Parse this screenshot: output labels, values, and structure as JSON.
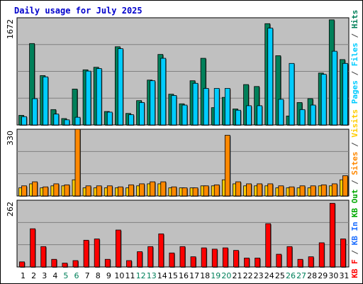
{
  "title": "Daily usage for July 2025",
  "colors": {
    "hits": "#00805a",
    "files": "#00ccff",
    "pages": "#00ccff",
    "sites": "#ff8800",
    "visits": "#ffcc00",
    "kbf": "#ff0000",
    "kbin": "#2070ff",
    "kbout": "#00aa00",
    "plot_bg": "#c0c0c0",
    "weekend": "#00805a",
    "sep": "#444444"
  },
  "chart_data": [
    {
      "type": "bar",
      "panel": "hits-files-pages",
      "categories": [
        "1",
        "2",
        "3",
        "4",
        "5",
        "6",
        "7",
        "8",
        "9",
        "10",
        "11",
        "12",
        "13",
        "14",
        "15",
        "16",
        "17",
        "18",
        "19",
        "20",
        "21",
        "22",
        "23",
        "24",
        "25",
        "26",
        "27",
        "28",
        "29",
        "30",
        "31"
      ],
      "weekend_days": [
        "5",
        "6",
        "12",
        "13",
        "19",
        "20",
        "26",
        "27"
      ],
      "ymax": 1672,
      "ytick_label": "1672",
      "series": [
        {
          "name": "Hits",
          "values": [
            150,
            1270,
            770,
            240,
            100,
            560,
            860,
            900,
            210,
            1220,
            180,
            380,
            700,
            1100,
            480,
            330,
            690,
            1040,
            270,
            430,
            250,
            630,
            600,
            1580,
            1080,
            140,
            350,
            410,
            810,
            1640,
            1020
          ]
        },
        {
          "name": "Files",
          "values": [
            130,
            410,
            750,
            170,
            80,
            120,
            840,
            880,
            200,
            1190,
            160,
            350,
            690,
            1040,
            460,
            310,
            650,
            570,
            570,
            570,
            230,
            300,
            300,
            1510,
            400,
            960,
            240,
            310,
            790,
            1150,
            960
          ]
        }
      ],
      "legend": [
        "Pages",
        "Files",
        "Hits"
      ]
    },
    {
      "type": "bar",
      "panel": "visits-sites",
      "categories": [
        "1",
        "2",
        "3",
        "4",
        "5",
        "6",
        "7",
        "8",
        "9",
        "10",
        "11",
        "12",
        "13",
        "14",
        "15",
        "16",
        "17",
        "18",
        "19",
        "20",
        "21",
        "22",
        "23",
        "24",
        "25",
        "26",
        "27",
        "28",
        "29",
        "30",
        "31"
      ],
      "ymax": 330,
      "ytick_label": "330",
      "series": [
        {
          "name": "Visits",
          "values": [
            40,
            60,
            40,
            50,
            50,
            80,
            40,
            40,
            40,
            40,
            40,
            50,
            60,
            60,
            40,
            40,
            40,
            50,
            50,
            80,
            60,
            50,
            50,
            50,
            40,
            40,
            40,
            40,
            50,
            50,
            80
          ]
        },
        {
          "name": "Sites",
          "values": [
            50,
            70,
            45,
            60,
            55,
            330,
            50,
            50,
            50,
            45,
            55,
            60,
            70,
            70,
            45,
            40,
            40,
            50,
            55,
            300,
            70,
            60,
            60,
            60,
            50,
            45,
            50,
            50,
            55,
            60,
            100
          ]
        }
      ],
      "legend": [
        "Visits",
        "Sites",
        "KB Out"
      ]
    },
    {
      "type": "bar",
      "panel": "kbytes",
      "categories": [
        "1",
        "2",
        "3",
        "4",
        "5",
        "6",
        "7",
        "8",
        "9",
        "10",
        "11",
        "12",
        "13",
        "14",
        "15",
        "16",
        "17",
        "18",
        "19",
        "20",
        "21",
        "22",
        "23",
        "24",
        "25",
        "26",
        "27",
        "28",
        "29",
        "30",
        "31"
      ],
      "ymax": 262,
      "ytick_label": "262",
      "series": [
        {
          "name": "KB F",
          "values": [
            20,
            150,
            80,
            30,
            15,
            25,
            105,
            110,
            30,
            145,
            25,
            60,
            80,
            130,
            55,
            80,
            40,
            75,
            70,
            75,
            65,
            35,
            35,
            170,
            50,
            80,
            30,
            40,
            95,
            250,
            110
          ]
        }
      ],
      "legend": [
        "KB In",
        "KB F"
      ]
    }
  ]
}
